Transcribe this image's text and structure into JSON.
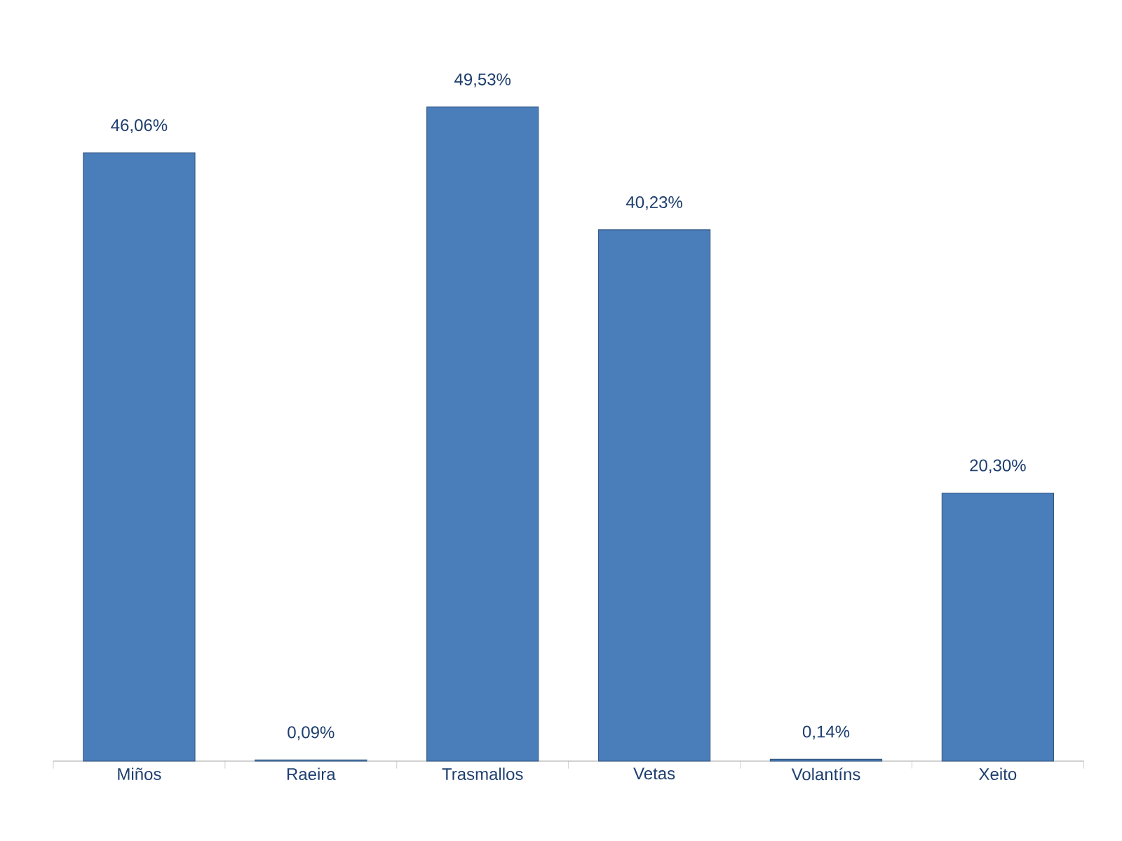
{
  "chart_data": {
    "type": "bar",
    "categories": [
      "Miños",
      "Raeira",
      "Trasmallos",
      "Vetas",
      "Volantíns",
      "Xeito"
    ],
    "values": [
      46.06,
      0.09,
      49.53,
      40.23,
      0.14,
      20.3
    ],
    "value_labels": [
      "46,06%",
      "0,09%",
      "49,53%",
      "40,23%",
      "0,14%",
      "20,30%"
    ],
    "color": "#4a7ebb"
  }
}
